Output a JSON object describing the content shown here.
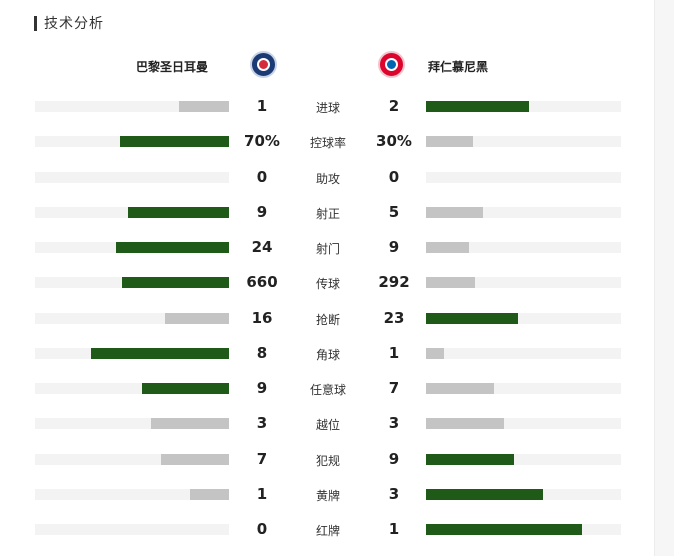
{
  "section": {
    "title": "技术分析"
  },
  "teams": {
    "home": "巴黎圣日耳曼",
    "away": "拜仁慕尼黑"
  },
  "colors": {
    "leading": "#1f5a18",
    "trailing": "#c4c4c4",
    "track": "#f3f3f3"
  },
  "stats": [
    {
      "label": "进球",
      "home": "1",
      "away": "2",
      "home_share": 0.26,
      "away_share": 0.53,
      "leader": "away"
    },
    {
      "label": "控球率",
      "home": "70%",
      "away": "30%",
      "home_share": 0.56,
      "away_share": 0.24,
      "leader": "home"
    },
    {
      "label": "助攻",
      "home": "0",
      "away": "0",
      "home_share": 0,
      "away_share": 0,
      "leader": "none"
    },
    {
      "label": "射正",
      "home": "9",
      "away": "5",
      "home_share": 0.52,
      "away_share": 0.29,
      "leader": "home"
    },
    {
      "label": "射门",
      "home": "24",
      "away": "9",
      "home_share": 0.58,
      "away_share": 0.22,
      "leader": "home"
    },
    {
      "label": "传球",
      "home": "660",
      "away": "292",
      "home_share": 0.55,
      "away_share": 0.25,
      "leader": "home"
    },
    {
      "label": "抢断",
      "home": "16",
      "away": "23",
      "home_share": 0.33,
      "away_share": 0.47,
      "leader": "away"
    },
    {
      "label": "角球",
      "home": "8",
      "away": "1",
      "home_share": 0.71,
      "away_share": 0.09,
      "leader": "home"
    },
    {
      "label": "任意球",
      "home": "9",
      "away": "7",
      "home_share": 0.45,
      "away_share": 0.35,
      "leader": "home"
    },
    {
      "label": "越位",
      "home": "3",
      "away": "3",
      "home_share": 0.4,
      "away_share": 0.4,
      "leader": "none"
    },
    {
      "label": "犯规",
      "home": "7",
      "away": "9",
      "home_share": 0.35,
      "away_share": 0.45,
      "leader": "away"
    },
    {
      "label": "黄牌",
      "home": "1",
      "away": "3",
      "home_share": 0.2,
      "away_share": 0.6,
      "leader": "away"
    },
    {
      "label": "红牌",
      "home": "0",
      "away": "1",
      "home_share": 0,
      "away_share": 0.8,
      "leader": "away"
    }
  ]
}
